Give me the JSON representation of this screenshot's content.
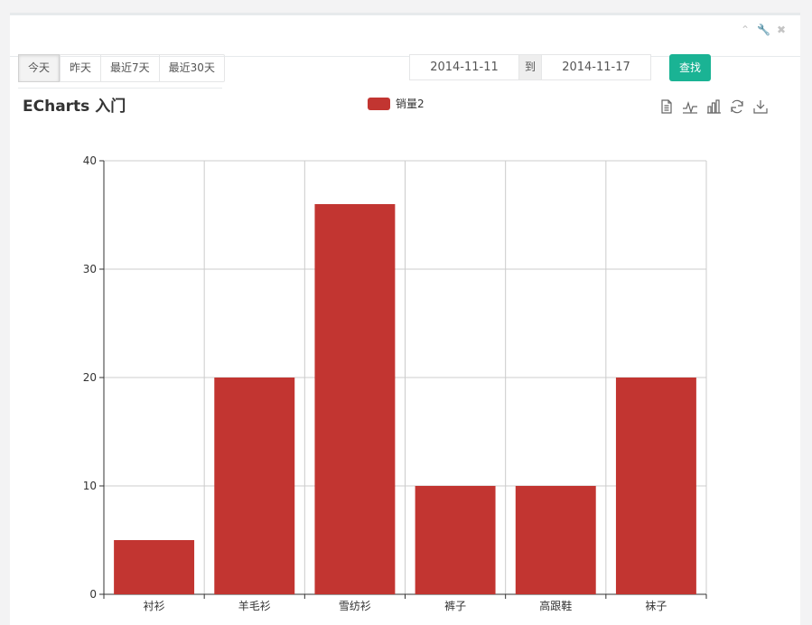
{
  "header": {
    "tools": [
      "chevron-up-icon",
      "wrench-icon",
      "close-icon"
    ]
  },
  "date_range": {
    "buttons": [
      "今天",
      "昨天",
      "最近7天",
      "最近30天"
    ],
    "active_index": 0
  },
  "date_filter": {
    "start": "2014-11-11",
    "separator": "到",
    "end": "2014-11-17",
    "search_label": "查找"
  },
  "toolbox": {
    "icons": [
      "data-view-icon",
      "line-chart-icon",
      "bar-chart-icon",
      "restore-icon",
      "save-image-icon"
    ]
  },
  "colors": {
    "accent": "#1ab394",
    "bar": "#c23531"
  },
  "chart_data": {
    "type": "bar",
    "title": "ECharts 入门",
    "categories": [
      "衬衫",
      "羊毛衫",
      "雪纺衫",
      "裤子",
      "高跟鞋",
      "袜子"
    ],
    "series": [
      {
        "name": "销量2",
        "values": [
          5,
          20,
          36,
          10,
          10,
          20
        ]
      }
    ],
    "ylim": [
      0,
      40
    ],
    "yticks": [
      0,
      10,
      20,
      30,
      40
    ],
    "grid": true,
    "legend": "top-center"
  }
}
